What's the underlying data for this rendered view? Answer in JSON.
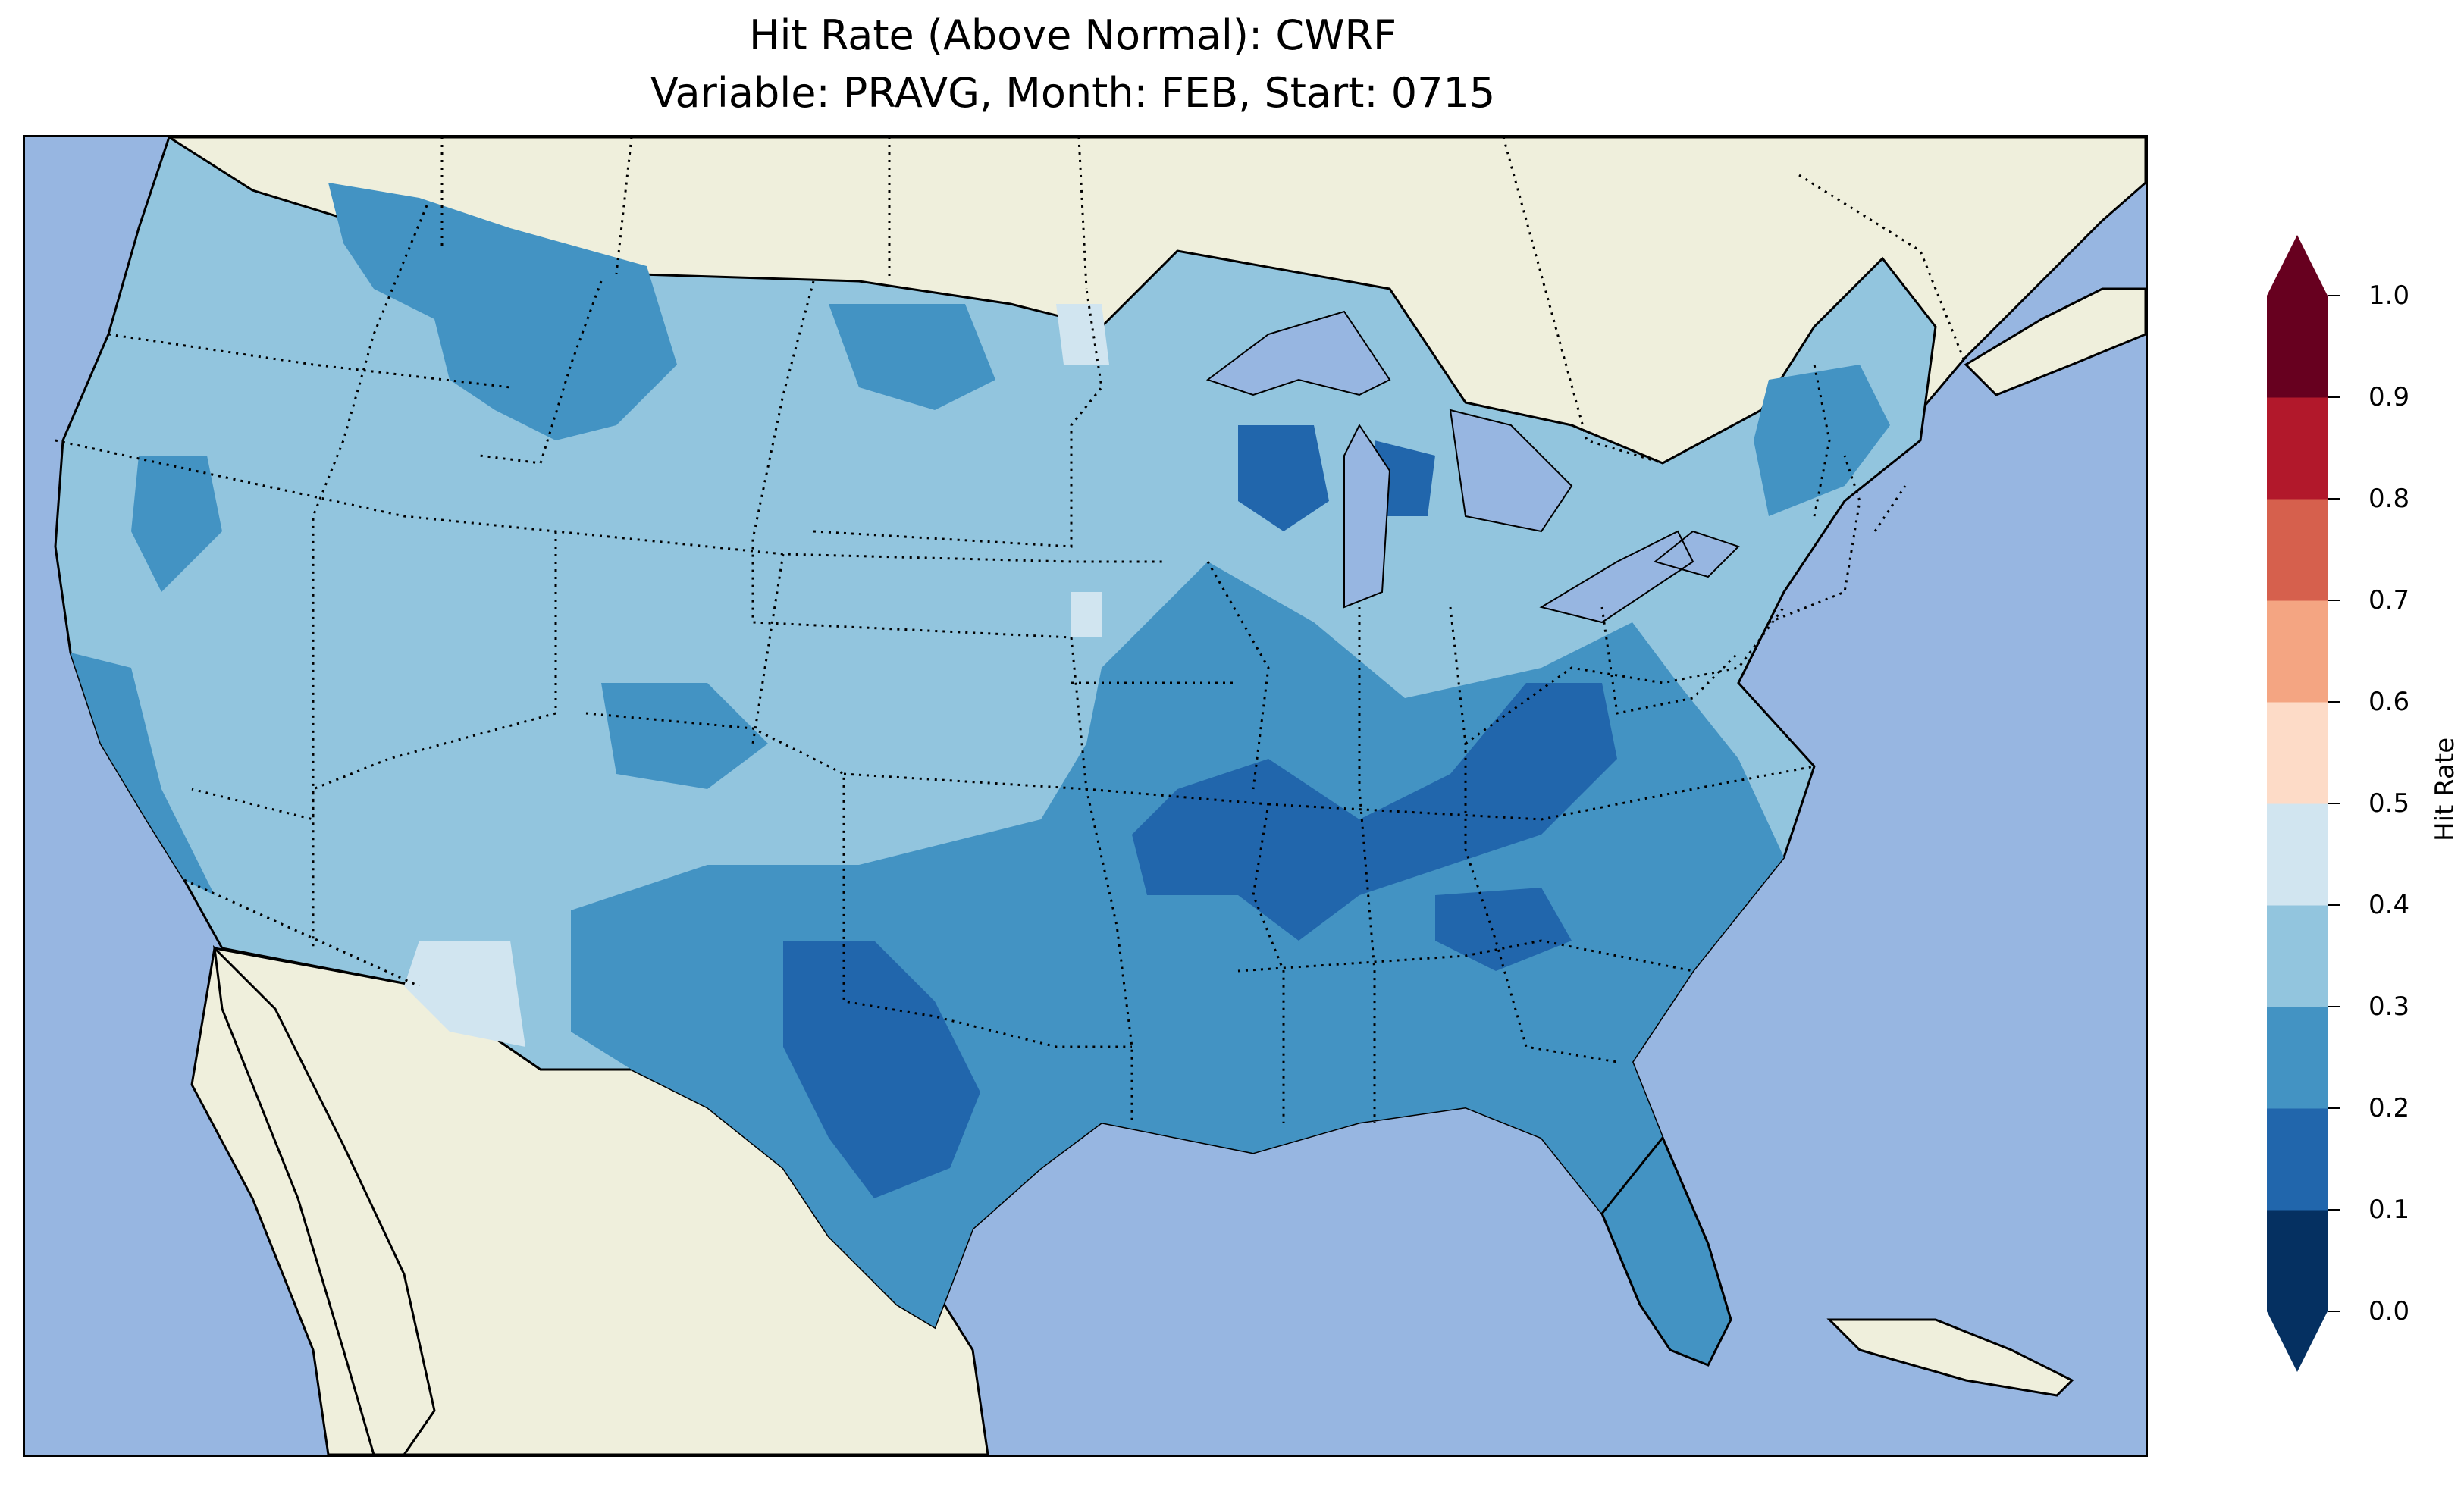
{
  "title_line1": "Hit Rate (Above Normal): CWRF",
  "title_line2": "Variable: PRAVG, Month: FEB, Start: 0715",
  "colorbar": {
    "label": "Hit Rate",
    "ticks": [
      "0.0",
      "0.1",
      "0.2",
      "0.3",
      "0.4",
      "0.5",
      "0.6",
      "0.7",
      "0.8",
      "0.9",
      "1.0"
    ],
    "colors": [
      "#053061",
      "#2166ac",
      "#4393c3",
      "#92c5de",
      "#d1e5f0",
      "#fddbc7",
      "#f4a582",
      "#d6604d",
      "#b2182b",
      "#67001f"
    ],
    "extend_low_color": "#053061",
    "extend_high_color": "#67001f"
  },
  "map": {
    "ocean_color": "#97b6e1",
    "land_color": "#efefdc",
    "region_colors": {
      "very_low_0.1_0.2": "#2166ac",
      "low_0.2_0.3": "#4393c3",
      "mid_0.3_0.4": "#92c5de",
      "high_0.4_0.5": "#d1e5f0"
    }
  }
}
